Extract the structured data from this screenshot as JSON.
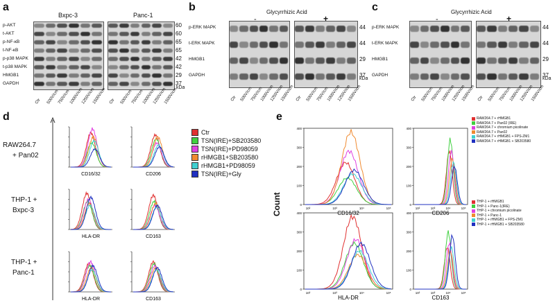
{
  "panel_labels": {
    "a": "a",
    "b": "b",
    "c": "c",
    "d": "d",
    "e": "e"
  },
  "panel_a": {
    "groups": [
      "Bxpc-3",
      "Panc-1"
    ],
    "rows": [
      "p-AKT",
      "t-AKT",
      "p-NF-κB",
      "t-NF-κB",
      "p-p38 MAPK",
      "t-p38 MAPK",
      "HMGB1",
      "GAPDH"
    ],
    "mw": [
      "60",
      "60",
      "65",
      "65",
      "42",
      "42",
      "29",
      "37"
    ],
    "kda": "kDa",
    "lanes": [
      "Ctr",
      "500V/cm",
      "750V/cm",
      "1000V/cm",
      "1250V/cm",
      "1500V/cm"
    ]
  },
  "panel_b": {
    "title": "Glycyrrhizic Acid",
    "minus": "-",
    "plus": "+",
    "rows": [
      "p-ERK MAPK",
      "t-ERK MAPK",
      "HMGB1",
      "GAPDH"
    ],
    "mw": [
      "44",
      "44",
      "29",
      "37"
    ],
    "kda": "kDa",
    "lanes": [
      "Ctr",
      "500V/cm",
      "750V/cm",
      "1000V/cm",
      "1250V/cm",
      "1500V/cm"
    ]
  },
  "panel_c": {
    "title": "Glycyrrhizic Acid",
    "minus": "-",
    "plus": "+",
    "rows": [
      "p-ERK MAPK",
      "t-ERK MAPK",
      "HMGB1",
      "GAPDH"
    ],
    "mw": [
      "44",
      "44",
      "29",
      "37"
    ],
    "kda": "kDa",
    "lanes": [
      "Ctr",
      "500V/cm",
      "750V/cm",
      "1000V/cm",
      "1250V/cm",
      "1500V/cm"
    ]
  },
  "panel_d": {
    "row_labels": [
      "RAW264.7",
      "+ Pan02",
      "THP-1 +",
      "Bxpc-3",
      "THP-1 +",
      "Panc-1"
    ],
    "axis_labels": [
      "CD16/32",
      "CD206",
      "HLA-DR",
      "CD163",
      "HLA-DR",
      "CD163"
    ],
    "legend": [
      {
        "label": "Ctr",
        "color": "#e03030"
      },
      {
        "label": "TSN(IRE)+SB203580",
        "color": "#40d040"
      },
      {
        "label": "TSN(IRE)+PD98059",
        "color": "#e040e0"
      },
      {
        "label": "rHMGB1+SB203580",
        "color": "#f08a30"
      },
      {
        "label": "rHMGB1+PD98059",
        "color": "#40d0d0"
      },
      {
        "label": "TSN(IRE)+Gly",
        "color": "#2030c0"
      }
    ]
  },
  "panel_e": {
    "ylabel": "Count",
    "axis_labels": [
      "CD16/32",
      "CD206",
      "HLA-DR",
      "CD163"
    ],
    "ticks": [
      "10²",
      "10³",
      "10⁴",
      "10⁵"
    ],
    "yticks": [
      "0",
      "100",
      "200",
      "300",
      "400"
    ],
    "legend_top": [
      {
        "label": "RAW264.7 + rHMGB1",
        "color": "#e03030"
      },
      {
        "label": "RAW264.7 + Pan02 (IRE)",
        "color": "#40d040"
      },
      {
        "label": "RAW264.7 + chromium picolinate",
        "color": "#e040e0"
      },
      {
        "label": "RAW264.7 + Pan02",
        "color": "#f08a30"
      },
      {
        "label": "RAW264.7 + rHMGB1 + FPS-ZM1",
        "color": "#40d0d0"
      },
      {
        "label": "RAW264.7 + rHMGB1 + SB203580",
        "color": "#2030c0"
      }
    ],
    "legend_bottom": [
      {
        "label": "THP-1 + rHMGB1",
        "color": "#e03030"
      },
      {
        "label": "THP-1 + Panc-1(IRE)",
        "color": "#40d040"
      },
      {
        "label": "THP-1 + chromium picolinate",
        "color": "#e040e0"
      },
      {
        "label": "THP-1 + Panc-1",
        "color": "#f08a30"
      },
      {
        "label": "THP-1 + rHMGB1 + FPS-ZM1",
        "color": "#40d0d0"
      },
      {
        "label": "THP-1 + rHMGB1 + SB203580",
        "color": "#2030c0"
      }
    ]
  }
}
